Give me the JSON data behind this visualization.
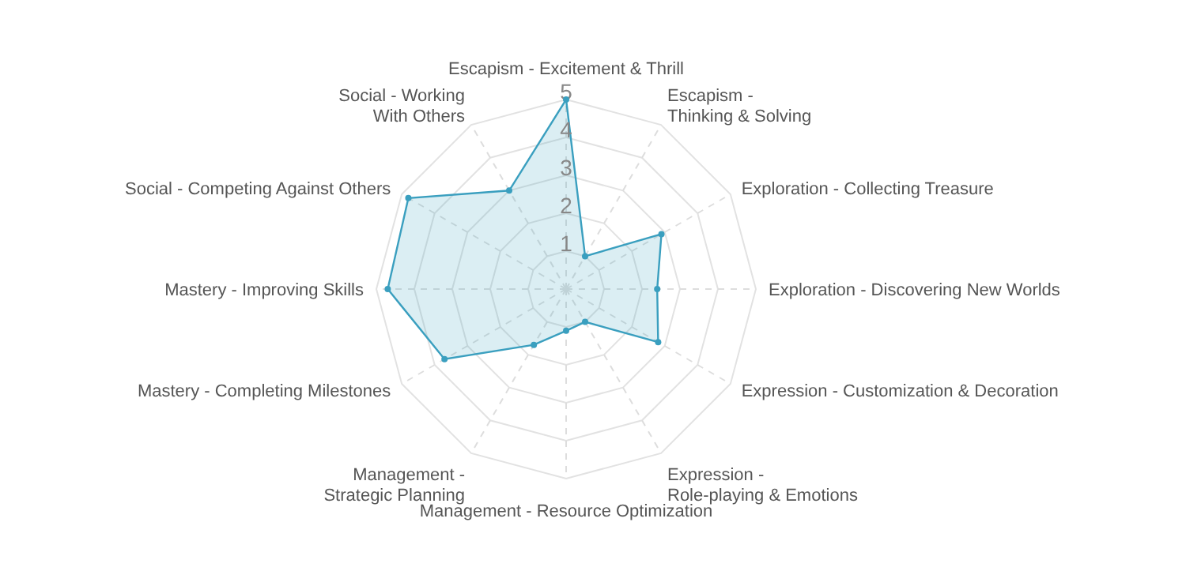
{
  "chart_data": {
    "type": "radar",
    "categories": [
      "Escapism - Excitement & Thrill",
      "Escapism - Thinking & Solving",
      "Exploration - Collecting Treasure",
      "Exploration - Discovering New Worlds",
      "Expression - Customization & Decoration",
      "Expression - Role-playing & Emotions",
      "Management - Resource Optimization",
      "Management - Strategic Planning",
      "Mastery - Completing Milestones",
      "Mastery - Improving Skills",
      "Social - Competing Against Others",
      "Social - Working With Others"
    ],
    "series": [
      {
        "color": "#3a9fbf",
        "values": [
          5,
          1,
          2.9,
          2.4,
          2.8,
          1,
          1.1,
          1.7,
          3.7,
          4.7,
          4.8,
          3
        ]
      }
    ],
    "ylim": [
      0,
      5
    ],
    "yticks": [
      1,
      2,
      3,
      4,
      5
    ],
    "grid": true,
    "marker": "circle"
  }
}
